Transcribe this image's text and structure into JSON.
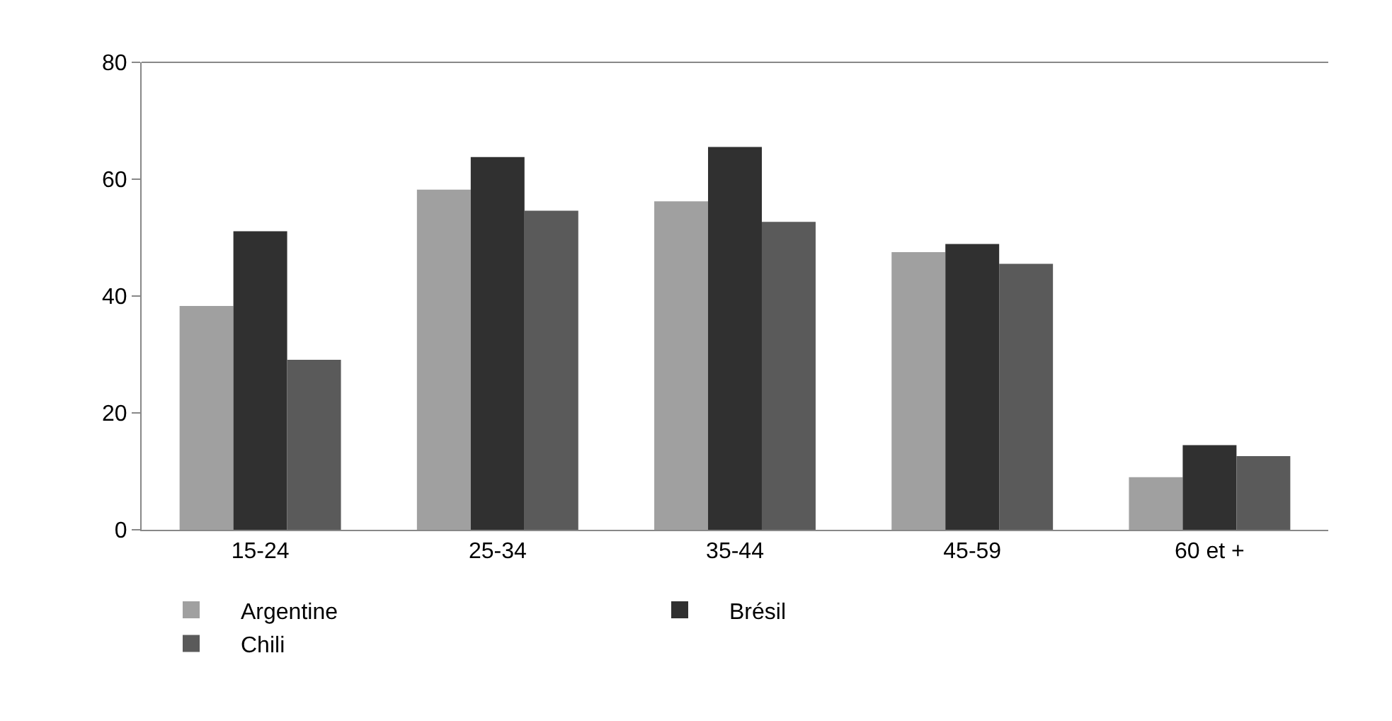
{
  "chart_data": {
    "type": "bar",
    "categories": [
      "15-24",
      "25-34",
      "35-44",
      "45-59",
      "60 et +"
    ],
    "series": [
      {
        "name": "Argentine",
        "color": "#a0a0a0",
        "values": [
          38.3,
          58.2,
          56.2,
          47.5,
          9.0
        ]
      },
      {
        "name": "Brésil",
        "color": "#303030",
        "values": [
          51.1,
          63.8,
          65.5,
          48.9,
          14.5
        ]
      },
      {
        "name": "Chili",
        "color": "#5a5a5a",
        "values": [
          29.1,
          54.6,
          52.7,
          45.5,
          12.6
        ]
      }
    ],
    "ylim": [
      0,
      80
    ],
    "yticks": [
      0,
      20,
      40,
      60,
      80
    ],
    "grid": false,
    "legend": "bottom"
  }
}
